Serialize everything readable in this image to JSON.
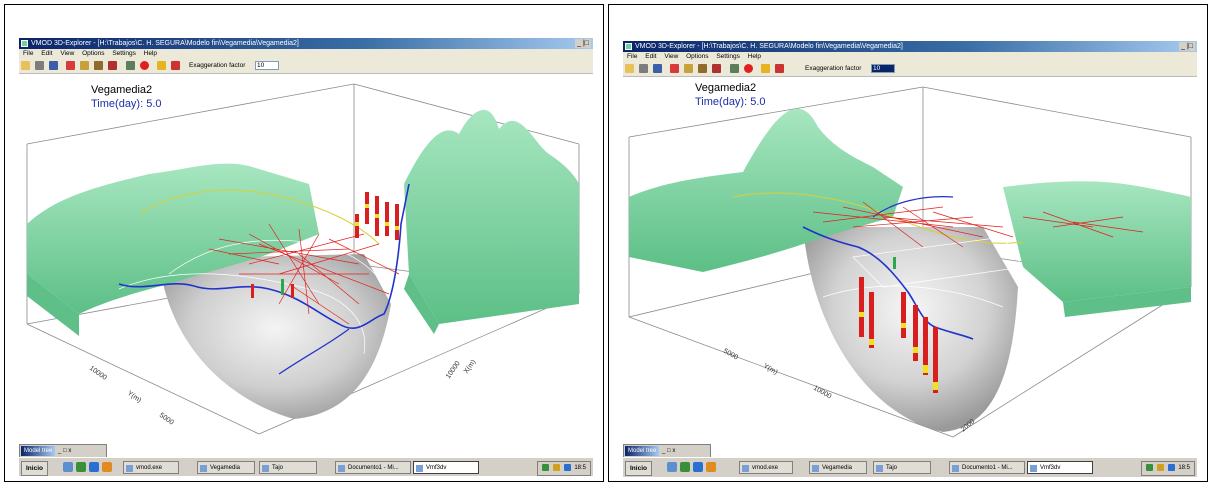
{
  "panels": [
    {
      "window_title": "VMOD 3D-Explorer - [H:\\Trabajos\\C. H. SEGURA\\Modelo fin\\Vegamedia\\Vegamedia2]",
      "window_buttons": "_ |□",
      "menu": [
        "File",
        "Edit",
        "View",
        "Options",
        "Settings",
        "Help"
      ],
      "exaggeration_label": "Exaggeration factor",
      "exaggeration_value": "10",
      "plot_title": "Vegamedia2",
      "time_label": "Time(day):   5.0",
      "axis_labels": [
        "10000",
        "Y(m)",
        "5000",
        "10000",
        "X(m)"
      ],
      "model_tree": {
        "title": "Model tree",
        "buttons": "_ □ x"
      },
      "taskbar": {
        "start_label": "Inicio",
        "items": [
          "vmod.exe",
          "Vegamedia",
          "Tajo",
          "Documento1 - Mi...",
          "Vmf3dv"
        ],
        "active_index": 4,
        "clock": "18:5"
      }
    },
    {
      "window_title": "VMOD 3D-Explorer - [H:\\Trabajos\\C. H. SEGURA\\Modelo fin\\Vegamedia\\Vegamedia2]",
      "window_buttons": "_ |□",
      "menu": [
        "File",
        "Edit",
        "View",
        "Options",
        "Settings",
        "Help"
      ],
      "exaggeration_label": "Exaggeration factor",
      "exaggeration_value": "10",
      "plot_title": "Vegamedia2",
      "time_label": "Time(day):   5.0",
      "axis_labels": [
        "5000",
        "Y(m)",
        "10000",
        "2000"
      ],
      "model_tree": {
        "title": "Model tree",
        "buttons": "_ □ x"
      },
      "taskbar": {
        "start_label": "Inicio",
        "items": [
          "vmod.exe",
          "Vegamedia",
          "Tajo",
          "Documento1 - Mi...",
          "Vmf3dv"
        ],
        "active_index": 4,
        "clock": "18:5"
      }
    }
  ],
  "colors": {
    "terrain": "#86d9a8",
    "terrain_dark": "#5fbf88",
    "basin": "#c9c9c9",
    "well_red": "#d81e1e",
    "well_yellow": "#f2e11e",
    "river": "#2233cc",
    "contour_yellow": "#d8cf3a",
    "pathline": "#e02020"
  },
  "icons": [
    "open-icon",
    "print-icon",
    "save-icon",
    "well-icon",
    "axes-icon",
    "layer-icon",
    "grid-icon",
    "settings-icon",
    "target-icon",
    "pathline-icon",
    "flag-icon"
  ]
}
